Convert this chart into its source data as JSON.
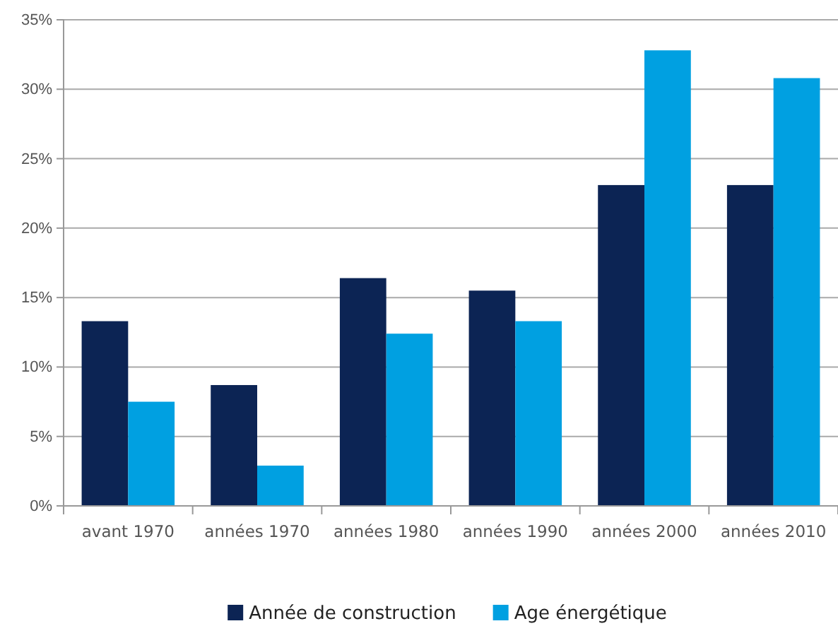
{
  "chart_data": {
    "type": "bar",
    "categories": [
      "avant 1970",
      "années 1970",
      "années 1980",
      "années 1990",
      "années 2000",
      "années 2010"
    ],
    "series": [
      {
        "name": "Année de construction",
        "color": "#0c2454",
        "values": [
          13.3,
          8.7,
          16.4,
          15.5,
          23.1,
          23.1
        ]
      },
      {
        "name": "Age énergétique",
        "color": "#00a0e1",
        "values": [
          7.5,
          2.9,
          12.4,
          13.3,
          32.8,
          30.8
        ]
      }
    ],
    "ylim": [
      0,
      35
    ],
    "yticks": [
      {
        "value": 0,
        "label": "0%"
      },
      {
        "value": 5,
        "label": "5%"
      },
      {
        "value": 10,
        "label": "10%"
      },
      {
        "value": 15,
        "label": "15%"
      },
      {
        "value": 20,
        "label": "20%"
      },
      {
        "value": 25,
        "label": "25%"
      },
      {
        "value": 30,
        "label": "30%"
      },
      {
        "value": 35,
        "label": "35%"
      }
    ],
    "grid": "y",
    "legend": "bottom"
  }
}
